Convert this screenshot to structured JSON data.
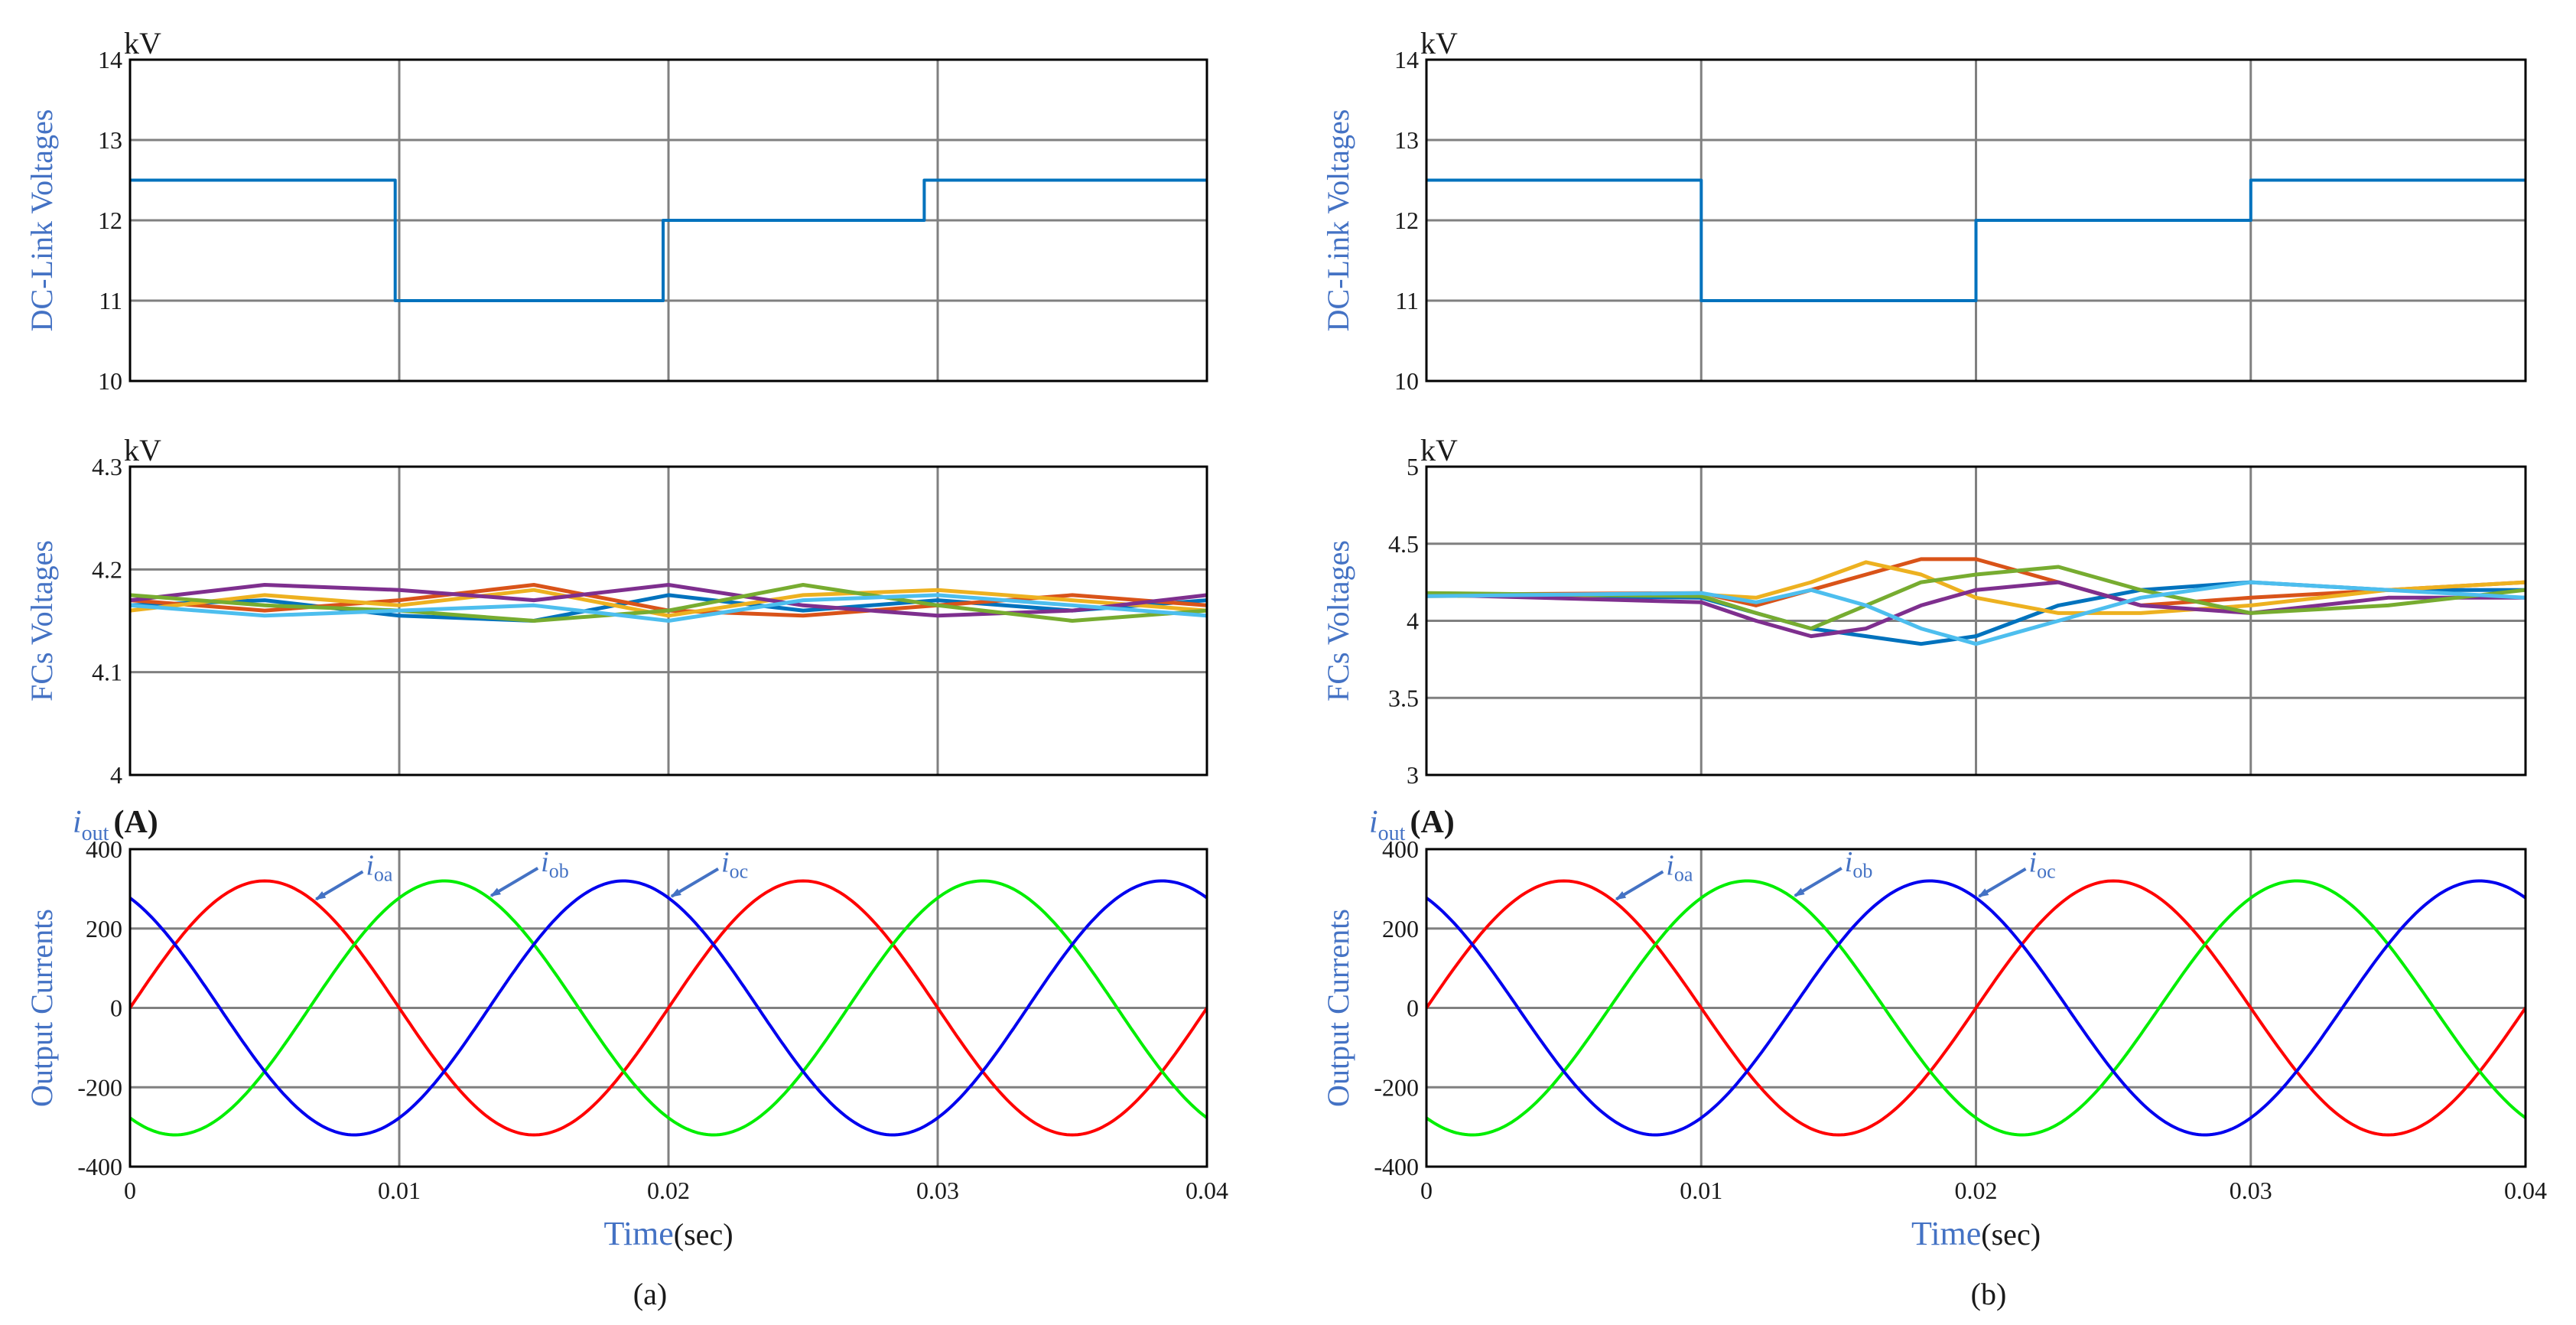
{
  "figure": {
    "captions": [
      "(a)",
      "(b)"
    ],
    "colors": {
      "dc_line": "#0072bd",
      "fc_lines": [
        "#0072bd",
        "#d95319",
        "#edb120",
        "#7e2f8e",
        "#77ac30",
        "#4dbeee"
      ],
      "ia": "#ff0000",
      "ib": "#00ee00",
      "ic": "#0000ee",
      "label": "#4472c4",
      "grid": "#808080"
    }
  },
  "chart_data": [
    {
      "type": "line",
      "panel": "a",
      "ylabel": "DC-Link Voltages",
      "unit": "kV",
      "xlim": [
        0,
        0.04
      ],
      "ylim": [
        10,
        14
      ],
      "yticks": [
        10,
        11,
        12,
        13,
        14
      ],
      "xticks": [
        0,
        0.01,
        0.02,
        0.03,
        0.04
      ],
      "series": [
        {
          "x": [
            0,
            0.00985,
            0.00985,
            0.0198,
            0.0198,
            0.0295,
            0.0295,
            0.04
          ],
          "values": [
            12.5,
            12.5,
            11,
            11,
            12,
            12,
            12.5,
            12.5
          ]
        }
      ]
    },
    {
      "type": "line",
      "panel": "a",
      "ylabel": "FCs Voltages",
      "unit": "kV",
      "xlim": [
        0,
        0.04
      ],
      "ylim": [
        4,
        4.3
      ],
      "yticks": [
        4,
        4.1,
        4.2,
        4.3
      ],
      "ytick_labels": [
        "4",
        "4.1",
        "4.2",
        "4.3"
      ],
      "xticks": [
        0,
        0.01,
        0.02,
        0.03,
        0.04
      ],
      "series": [
        {
          "x": [
            0,
            0.005,
            0.01,
            0.015,
            0.02,
            0.025,
            0.03,
            0.035,
            0.04
          ],
          "values": [
            4.165,
            4.17,
            4.155,
            4.15,
            4.175,
            4.16,
            4.17,
            4.16,
            4.17
          ]
        },
        {
          "x": [
            0,
            0.005,
            0.01,
            0.015,
            0.02,
            0.025,
            0.03,
            0.035,
            0.04
          ],
          "values": [
            4.17,
            4.16,
            4.17,
            4.185,
            4.16,
            4.155,
            4.165,
            4.175,
            4.165
          ]
        },
        {
          "x": [
            0,
            0.005,
            0.01,
            0.015,
            0.02,
            0.025,
            0.03,
            0.035,
            0.04
          ],
          "values": [
            4.16,
            4.175,
            4.165,
            4.18,
            4.155,
            4.175,
            4.18,
            4.17,
            4.16
          ]
        },
        {
          "x": [
            0,
            0.005,
            0.01,
            0.015,
            0.02,
            0.025,
            0.03,
            0.035,
            0.04
          ],
          "values": [
            4.17,
            4.185,
            4.18,
            4.17,
            4.185,
            4.165,
            4.155,
            4.16,
            4.175
          ]
        },
        {
          "x": [
            0,
            0.005,
            0.01,
            0.015,
            0.02,
            0.025,
            0.03,
            0.035,
            0.04
          ],
          "values": [
            4.175,
            4.165,
            4.16,
            4.15,
            4.16,
            4.185,
            4.165,
            4.15,
            4.16
          ]
        },
        {
          "x": [
            0,
            0.005,
            0.01,
            0.015,
            0.02,
            0.025,
            0.03,
            0.035,
            0.04
          ],
          "values": [
            4.165,
            4.155,
            4.16,
            4.165,
            4.15,
            4.17,
            4.175,
            4.165,
            4.155
          ]
        }
      ]
    },
    {
      "type": "line",
      "panel": "a",
      "ylabel": "Output Currents",
      "unit_label": {
        "symbol": "i",
        "sub": "out",
        "unit": "(A)"
      },
      "xlabel": "Time",
      "xlabel_unit": "(sec)",
      "xlim": [
        0,
        0.04
      ],
      "ylim": [
        -400,
        400
      ],
      "yticks": [
        -400,
        -200,
        0,
        200,
        400
      ],
      "xticks": [
        0,
        0.01,
        0.02,
        0.03,
        0.04
      ],
      "xtick_labels": [
        "0",
        "0.01",
        "0.02",
        "0.03",
        "0.04"
      ],
      "waveform": {
        "amplitude": 320,
        "frequency_hz": 50,
        "phase_deg": [
          0,
          -120,
          120
        ]
      },
      "series": [
        {
          "name": "ia",
          "label": "i",
          "sub": "oa"
        },
        {
          "name": "ib",
          "label": "i",
          "sub": "ob"
        },
        {
          "name": "ic",
          "label": "i",
          "sub": "oc"
        }
      ]
    },
    {
      "type": "line",
      "panel": "b",
      "ylabel": "DC-Link Voltages",
      "unit": "kV",
      "xlim": [
        0,
        0.04
      ],
      "ylim": [
        10,
        14
      ],
      "yticks": [
        10,
        11,
        12,
        13,
        14
      ],
      "xticks": [
        0,
        0.01,
        0.02,
        0.03,
        0.04
      ],
      "series": [
        {
          "x": [
            0,
            0.01,
            0.01,
            0.02,
            0.02,
            0.03,
            0.03,
            0.04
          ],
          "values": [
            12.5,
            12.5,
            11,
            11,
            12,
            12,
            12.5,
            12.5
          ]
        }
      ]
    },
    {
      "type": "line",
      "panel": "b",
      "ylabel": "FCs Voltages",
      "unit": "kV",
      "xlim": [
        0,
        0.04
      ],
      "ylim": [
        3,
        5
      ],
      "yticks": [
        3,
        3.5,
        4,
        4.5,
        5
      ],
      "ytick_labels": [
        "3",
        "3.5",
        "4",
        "4.5",
        "5"
      ],
      "xticks": [
        0,
        0.01,
        0.02,
        0.03,
        0.04
      ],
      "series": [
        {
          "x": [
            0,
            0.01,
            0.012,
            0.014,
            0.016,
            0.018,
            0.02,
            0.023,
            0.026,
            0.03,
            0.035,
            0.04
          ],
          "values": [
            4.17,
            4.15,
            4.05,
            3.95,
            3.9,
            3.85,
            3.9,
            4.1,
            4.2,
            4.25,
            4.2,
            4.2
          ]
        },
        {
          "x": [
            0,
            0.01,
            0.012,
            0.014,
            0.016,
            0.018,
            0.02,
            0.023,
            0.026,
            0.03,
            0.035,
            0.04
          ],
          "values": [
            4.17,
            4.18,
            4.1,
            4.2,
            4.3,
            4.4,
            4.4,
            4.25,
            4.1,
            4.15,
            4.2,
            4.25
          ]
        },
        {
          "x": [
            0,
            0.01,
            0.012,
            0.014,
            0.016,
            0.018,
            0.02,
            0.023,
            0.026,
            0.03,
            0.035,
            0.04
          ],
          "values": [
            4.16,
            4.17,
            4.15,
            4.25,
            4.38,
            4.3,
            4.15,
            4.05,
            4.05,
            4.1,
            4.2,
            4.25
          ]
        },
        {
          "x": [
            0,
            0.01,
            0.012,
            0.014,
            0.016,
            0.018,
            0.02,
            0.023,
            0.026,
            0.03,
            0.035,
            0.04
          ],
          "values": [
            4.17,
            4.12,
            4.0,
            3.9,
            3.95,
            4.1,
            4.2,
            4.25,
            4.1,
            4.05,
            4.15,
            4.15
          ]
        },
        {
          "x": [
            0,
            0.01,
            0.012,
            0.014,
            0.016,
            0.018,
            0.02,
            0.023,
            0.026,
            0.03,
            0.035,
            0.04
          ],
          "values": [
            4.18,
            4.16,
            4.05,
            3.95,
            4.1,
            4.25,
            4.3,
            4.35,
            4.2,
            4.05,
            4.1,
            4.2
          ]
        },
        {
          "x": [
            0,
            0.01,
            0.012,
            0.014,
            0.016,
            0.018,
            0.02,
            0.023,
            0.026,
            0.03,
            0.035,
            0.04
          ],
          "values": [
            4.16,
            4.18,
            4.12,
            4.2,
            4.1,
            3.95,
            3.85,
            4.0,
            4.15,
            4.25,
            4.2,
            4.15
          ]
        }
      ]
    },
    {
      "type": "line",
      "panel": "b",
      "ylabel": "Output Currents",
      "unit_label": {
        "symbol": "i",
        "sub": "out",
        "unit": "(A)"
      },
      "xlabel": "Time",
      "xlabel_unit": "(sec)",
      "xlim": [
        0,
        0.04
      ],
      "ylim": [
        -400,
        400
      ],
      "yticks": [
        -400,
        -200,
        0,
        200,
        400
      ],
      "xticks": [
        0,
        0.01,
        0.02,
        0.03,
        0.04
      ],
      "xtick_labels": [
        "0",
        "0.01",
        "0.02",
        "0.03",
        "0.04"
      ],
      "waveform": {
        "amplitude": 320,
        "frequency_hz": 50,
        "phase_deg": [
          0,
          -120,
          120
        ]
      },
      "series": [
        {
          "name": "ia",
          "label": "i",
          "sub": "oa"
        },
        {
          "name": "ib",
          "label": "i",
          "sub": "ob"
        },
        {
          "name": "ic",
          "label": "i",
          "sub": "oc"
        }
      ]
    }
  ]
}
